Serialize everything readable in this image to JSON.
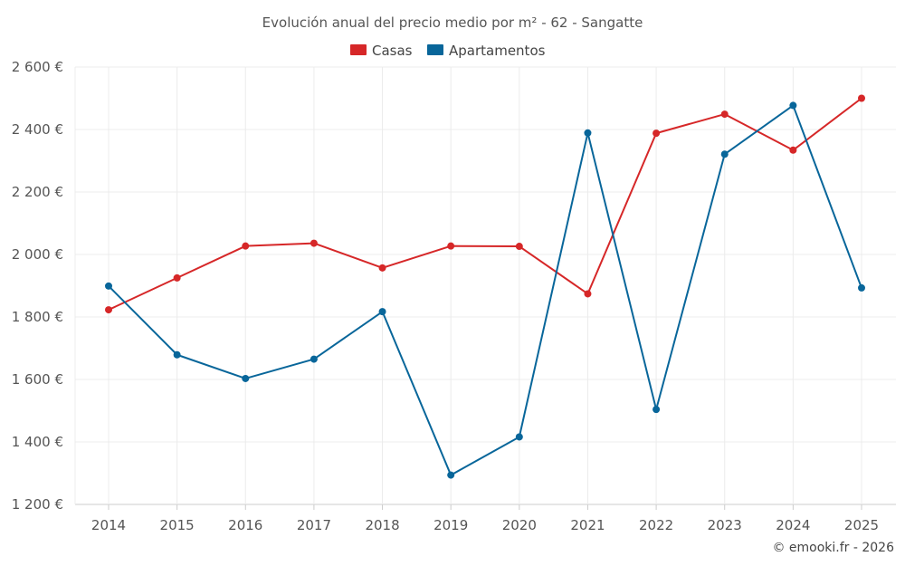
{
  "chart_data": {
    "type": "line",
    "title": "Evolución anual del precio medio por m² - 62 - Sangatte",
    "xlabel": "",
    "ylabel": "",
    "categories": [
      "2014",
      "2015",
      "2016",
      "2017",
      "2018",
      "2019",
      "2020",
      "2021",
      "2022",
      "2023",
      "2024",
      "2025"
    ],
    "ylim": [
      1200,
      2600
    ],
    "yticks": [
      1200,
      1400,
      1600,
      1800,
      2000,
      2200,
      2400,
      2600
    ],
    "ytick_labels": [
      "1 200 €",
      "1 400 €",
      "1 600 €",
      "1 800 €",
      "2 000 €",
      "2 200 €",
      "2 400 €",
      "2 600 €"
    ],
    "grid": true,
    "legend_position": "top-center",
    "series": [
      {
        "name": "Casas",
        "color": "#d62728",
        "values": [
          1823,
          1925,
          2027,
          2036,
          1957,
          2027,
          2026,
          1874,
          2388,
          2449,
          2334,
          2500
        ]
      },
      {
        "name": "Apartamentos",
        "color": "#08669a",
        "values": [
          1899,
          1679,
          1603,
          1665,
          1817,
          1294,
          1416,
          2389,
          1504,
          2321,
          2477,
          1893
        ]
      }
    ],
    "credit": "© emooki.fr - 2026"
  }
}
